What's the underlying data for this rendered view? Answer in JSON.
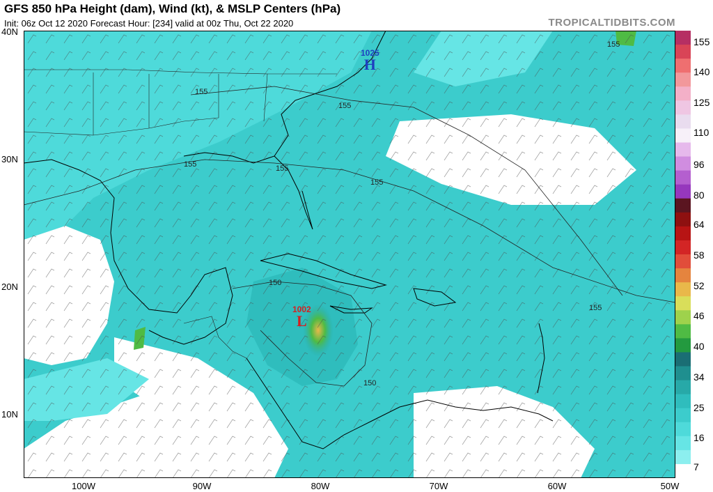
{
  "header": {
    "title": "GFS 850 hPa Height (dam), Wind (kt), & MSLP Centers (hPa)",
    "subtitle": "Init: 06z Oct 12 2020   Forecast Hour: [234]   valid at 00z Thu, Oct 22 2020",
    "brand": "TROPICALTIDBITS.COM"
  },
  "axes": {
    "lat_labels": [
      "40N",
      "30N",
      "20N",
      "10N"
    ],
    "lon_labels": [
      "100W",
      "90W",
      "80W",
      "70W",
      "60W",
      "50W"
    ]
  },
  "map": {
    "contour_labels": [
      "155",
      "155",
      "155",
      "155",
      "155",
      "155",
      "155",
      "150",
      "150",
      "155"
    ],
    "pressure_centers": [
      {
        "type": "H",
        "value": "1025",
        "color": "#1f3fbf"
      },
      {
        "type": "L",
        "value": "1002",
        "color": "#d42020"
      }
    ]
  },
  "colorbar": {
    "labels": [
      "155",
      "140",
      "125",
      "110",
      "96",
      "80",
      "64",
      "58",
      "52",
      "46",
      "40",
      "34",
      "25",
      "16",
      "7"
    ],
    "stops": [
      {
        "color": "#b62f63"
      },
      {
        "color": "#d94457"
      },
      {
        "color": "#ef6f70"
      },
      {
        "color": "#f2989b"
      },
      {
        "color": "#f3b0c8"
      },
      {
        "color": "#efc6e3"
      },
      {
        "color": "#e9dcef"
      },
      {
        "color": "#f7f0f9"
      },
      {
        "color": "#e6b9ec"
      },
      {
        "color": "#d08de0"
      },
      {
        "color": "#b45fcf"
      },
      {
        "color": "#9637bd"
      },
      {
        "color": "#5a1520"
      },
      {
        "color": "#8e1010"
      },
      {
        "color": "#b71414"
      },
      {
        "color": "#d32525"
      },
      {
        "color": "#e14d3a"
      },
      {
        "color": "#e5843e"
      },
      {
        "color": "#e9b84a"
      },
      {
        "color": "#d9de5a"
      },
      {
        "color": "#9ed24c"
      },
      {
        "color": "#4fbb44"
      },
      {
        "color": "#239a3f"
      },
      {
        "color": "#1a6e74"
      },
      {
        "color": "#1f8f8f"
      },
      {
        "color": "#27a9a8"
      },
      {
        "color": "#2fbdbd"
      },
      {
        "color": "#3ccccc"
      },
      {
        "color": "#4edada"
      },
      {
        "color": "#66e5e5"
      },
      {
        "color": "#8cefef"
      },
      {
        "color": "#ffffff"
      }
    ]
  }
}
